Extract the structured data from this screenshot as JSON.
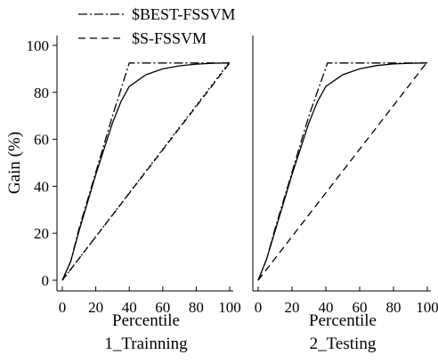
{
  "chart_data": [
    {
      "type": "line",
      "subtitle": "1_Trainning",
      "xlabel": "Percentile",
      "ylabel": "Gain (%)",
      "xlim": [
        0,
        100
      ],
      "ylim": [
        0,
        100
      ],
      "xticks": [
        0,
        20,
        40,
        60,
        80,
        100
      ],
      "yticks": [
        0,
        20,
        40,
        60,
        80,
        100
      ],
      "legend": {
        "placement": "top",
        "entries": [
          "$BEST-FSSVM",
          "$S-FSSVM"
        ]
      },
      "series": [
        {
          "name": "$BEST-FSSVM",
          "style": "dash-dot",
          "points": [
            [
              0,
              0
            ],
            [
              5,
              8
            ],
            [
              10,
              22
            ],
            [
              20,
              46
            ],
            [
              30,
              70
            ],
            [
              40,
              92.5
            ],
            [
              60,
              92.5
            ],
            [
              80,
              92.5
            ],
            [
              100,
              92.5
            ]
          ]
        },
        {
          "name": "$S-FSSVM",
          "style": "dashed",
          "points": [
            [
              0,
              0
            ],
            [
              100,
              92.5
            ]
          ]
        },
        {
          "style": "solid",
          "points": [
            [
              0,
              0
            ],
            [
              5,
              8
            ],
            [
              10,
              21
            ],
            [
              20,
              45
            ],
            [
              30,
              67
            ],
            [
              35,
              76
            ],
            [
              40,
              82.5
            ],
            [
              50,
              87.5
            ],
            [
              60,
              90
            ],
            [
              70,
              91.3
            ],
            [
              80,
              92
            ],
            [
              90,
              92.4
            ],
            [
              100,
              92.5
            ]
          ]
        },
        {
          "style": "dotted",
          "points": [
            [
              0,
              0
            ],
            [
              100,
              93
            ]
          ]
        }
      ]
    },
    {
      "type": "line",
      "subtitle": "2_Testing",
      "xlabel": "Percentile",
      "xlim": [
        0,
        100
      ],
      "ylim": [
        0,
        100
      ],
      "xticks": [
        0,
        20,
        40,
        60,
        80,
        100
      ],
      "series": [
        {
          "name": "$BEST-FSSVM",
          "style": "dash-dot",
          "points": [
            [
              0,
              0
            ],
            [
              5,
              9
            ],
            [
              10,
              22
            ],
            [
              20,
              46
            ],
            [
              30,
              70
            ],
            [
              41,
              92.5
            ],
            [
              60,
              92.5
            ],
            [
              80,
              92.5
            ],
            [
              100,
              92.5
            ]
          ]
        },
        {
          "name": "$S-FSSVM",
          "style": "dashed",
          "points": [
            [
              0,
              0
            ],
            [
              100,
              93
            ]
          ]
        },
        {
          "style": "solid",
          "points": [
            [
              0,
              0
            ],
            [
              5,
              9
            ],
            [
              10,
              21
            ],
            [
              20,
              45
            ],
            [
              30,
              67
            ],
            [
              35,
              76
            ],
            [
              40,
              82.5
            ],
            [
              50,
              87.5
            ],
            [
              60,
              90
            ],
            [
              70,
              91.4
            ],
            [
              80,
              92.1
            ],
            [
              90,
              92.4
            ],
            [
              100,
              92.5
            ]
          ]
        }
      ]
    }
  ]
}
